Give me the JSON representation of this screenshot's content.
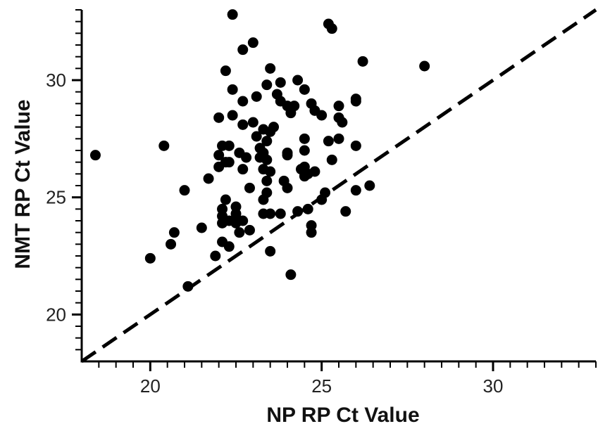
{
  "chart_data": {
    "type": "scatter",
    "xlabel": "NP RP Ct Value",
    "ylabel": "NMT RP Ct Value",
    "xlim": [
      18,
      33
    ],
    "ylim": [
      18,
      33
    ],
    "xticks": [
      "20",
      "25",
      "30"
    ],
    "yticks": [
      "20",
      "25",
      "30"
    ],
    "x_minor_step": 0.5,
    "y_minor_step": 0.5,
    "grid": false,
    "reference_line": {
      "style": "dashed",
      "from": [
        18,
        18
      ],
      "to": [
        33,
        33
      ]
    },
    "marker_color": "#000000",
    "points": [
      {
        "x": 18.4,
        "y": 26.8
      },
      {
        "x": 20.0,
        "y": 22.4
      },
      {
        "x": 20.4,
        "y": 27.2
      },
      {
        "x": 20.6,
        "y": 23.0
      },
      {
        "x": 20.7,
        "y": 23.5
      },
      {
        "x": 21.0,
        "y": 25.3
      },
      {
        "x": 21.1,
        "y": 21.2
      },
      {
        "x": 21.5,
        "y": 23.7
      },
      {
        "x": 21.7,
        "y": 25.8
      },
      {
        "x": 21.9,
        "y": 22.5
      },
      {
        "x": 22.0,
        "y": 28.4
      },
      {
        "x": 22.0,
        "y": 26.8
      },
      {
        "x": 22.0,
        "y": 26.3
      },
      {
        "x": 22.1,
        "y": 27.2
      },
      {
        "x": 22.1,
        "y": 24.5
      },
      {
        "x": 22.1,
        "y": 24.2
      },
      {
        "x": 22.1,
        "y": 23.9
      },
      {
        "x": 22.1,
        "y": 23.1
      },
      {
        "x": 22.2,
        "y": 30.4
      },
      {
        "x": 22.2,
        "y": 26.5
      },
      {
        "x": 22.2,
        "y": 24.9
      },
      {
        "x": 22.3,
        "y": 27.2
      },
      {
        "x": 22.3,
        "y": 26.5
      },
      {
        "x": 22.3,
        "y": 24.0
      },
      {
        "x": 22.3,
        "y": 22.9
      },
      {
        "x": 22.4,
        "y": 32.8
      },
      {
        "x": 22.4,
        "y": 29.6
      },
      {
        "x": 22.4,
        "y": 28.5
      },
      {
        "x": 22.5,
        "y": 24.6
      },
      {
        "x": 22.5,
        "y": 24.3
      },
      {
        "x": 22.5,
        "y": 23.9
      },
      {
        "x": 22.6,
        "y": 23.5
      },
      {
        "x": 22.6,
        "y": 26.9
      },
      {
        "x": 22.7,
        "y": 31.3
      },
      {
        "x": 22.7,
        "y": 29.1
      },
      {
        "x": 22.7,
        "y": 28.1
      },
      {
        "x": 22.7,
        "y": 26.2
      },
      {
        "x": 22.7,
        "y": 24.0
      },
      {
        "x": 22.8,
        "y": 26.7
      },
      {
        "x": 22.9,
        "y": 25.4
      },
      {
        "x": 22.9,
        "y": 23.6
      },
      {
        "x": 23.0,
        "y": 31.6
      },
      {
        "x": 23.0,
        "y": 28.2
      },
      {
        "x": 23.1,
        "y": 29.3
      },
      {
        "x": 23.1,
        "y": 27.6
      },
      {
        "x": 23.2,
        "y": 27.1
      },
      {
        "x": 23.2,
        "y": 26.7
      },
      {
        "x": 23.3,
        "y": 27.9
      },
      {
        "x": 23.3,
        "y": 26.9
      },
      {
        "x": 23.3,
        "y": 26.2
      },
      {
        "x": 23.3,
        "y": 24.9
      },
      {
        "x": 23.3,
        "y": 24.3
      },
      {
        "x": 23.4,
        "y": 29.8
      },
      {
        "x": 23.4,
        "y": 27.4
      },
      {
        "x": 23.4,
        "y": 26.6
      },
      {
        "x": 23.4,
        "y": 25.7
      },
      {
        "x": 23.4,
        "y": 25.2
      },
      {
        "x": 23.5,
        "y": 30.5
      },
      {
        "x": 23.5,
        "y": 27.8
      },
      {
        "x": 23.5,
        "y": 26.1
      },
      {
        "x": 23.5,
        "y": 24.3
      },
      {
        "x": 23.5,
        "y": 22.7
      },
      {
        "x": 23.6,
        "y": 28.0
      },
      {
        "x": 23.7,
        "y": 29.4
      },
      {
        "x": 23.8,
        "y": 29.9
      },
      {
        "x": 23.8,
        "y": 29.1
      },
      {
        "x": 23.8,
        "y": 24.3
      },
      {
        "x": 23.9,
        "y": 25.7
      },
      {
        "x": 24.0,
        "y": 28.9
      },
      {
        "x": 24.0,
        "y": 26.9
      },
      {
        "x": 24.0,
        "y": 26.8
      },
      {
        "x": 24.0,
        "y": 25.4
      },
      {
        "x": 24.1,
        "y": 21.7
      },
      {
        "x": 24.1,
        "y": 28.6
      },
      {
        "x": 24.2,
        "y": 28.9
      },
      {
        "x": 24.3,
        "y": 30.0
      },
      {
        "x": 24.3,
        "y": 24.4
      },
      {
        "x": 24.4,
        "y": 26.2
      },
      {
        "x": 24.5,
        "y": 29.6
      },
      {
        "x": 24.5,
        "y": 27.5
      },
      {
        "x": 24.5,
        "y": 27.0
      },
      {
        "x": 24.5,
        "y": 26.3
      },
      {
        "x": 24.5,
        "y": 25.9
      },
      {
        "x": 24.6,
        "y": 26.0
      },
      {
        "x": 24.6,
        "y": 24.5
      },
      {
        "x": 24.7,
        "y": 29.0
      },
      {
        "x": 24.7,
        "y": 23.8
      },
      {
        "x": 24.7,
        "y": 23.5
      },
      {
        "x": 24.8,
        "y": 28.7
      },
      {
        "x": 24.8,
        "y": 26.1
      },
      {
        "x": 25.0,
        "y": 28.5
      },
      {
        "x": 25.0,
        "y": 24.9
      },
      {
        "x": 25.1,
        "y": 25.2
      },
      {
        "x": 25.2,
        "y": 32.4
      },
      {
        "x": 25.2,
        "y": 27.4
      },
      {
        "x": 25.3,
        "y": 32.2
      },
      {
        "x": 25.3,
        "y": 26.6
      },
      {
        "x": 25.5,
        "y": 28.4
      },
      {
        "x": 25.5,
        "y": 27.5
      },
      {
        "x": 25.5,
        "y": 28.9
      },
      {
        "x": 25.6,
        "y": 28.2
      },
      {
        "x": 25.7,
        "y": 24.4
      },
      {
        "x": 26.0,
        "y": 29.2
      },
      {
        "x": 26.0,
        "y": 29.1
      },
      {
        "x": 26.0,
        "y": 27.2
      },
      {
        "x": 26.0,
        "y": 25.3
      },
      {
        "x": 26.2,
        "y": 30.8
      },
      {
        "x": 26.4,
        "y": 25.5
      },
      {
        "x": 28.0,
        "y": 30.6
      }
    ]
  }
}
